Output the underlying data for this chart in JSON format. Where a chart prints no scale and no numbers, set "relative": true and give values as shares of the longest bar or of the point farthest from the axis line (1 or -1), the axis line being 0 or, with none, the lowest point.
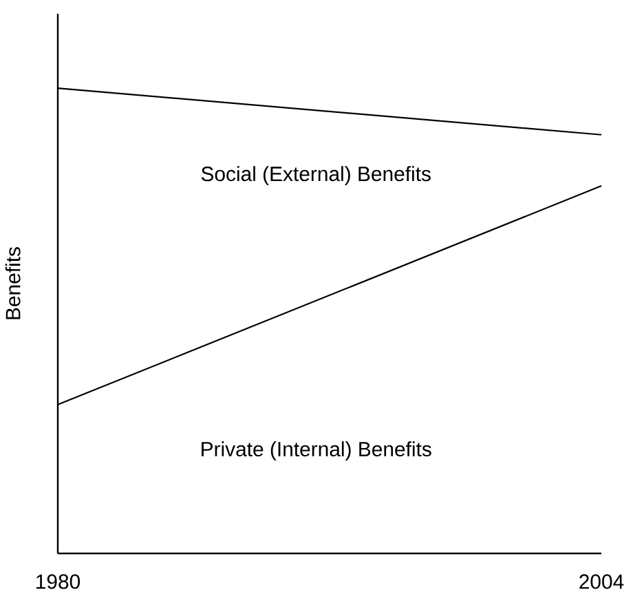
{
  "chart_data": {
    "type": "line",
    "relative": true,
    "ylabel": "Benefits",
    "xlim": [
      1980,
      2004
    ],
    "x": [
      1980,
      2004
    ],
    "xticks": [
      1980,
      2004
    ],
    "annotations": [
      "Social (External) Benefits",
      "Private (Internal) Benefits"
    ],
    "marker": "none",
    "line_style": "solid",
    "series": [
      {
        "color": "#000000",
        "values": [
          1.0,
          0.9
        ]
      },
      {
        "color": "#000000",
        "values": [
          0.32,
          0.79
        ]
      }
    ]
  }
}
